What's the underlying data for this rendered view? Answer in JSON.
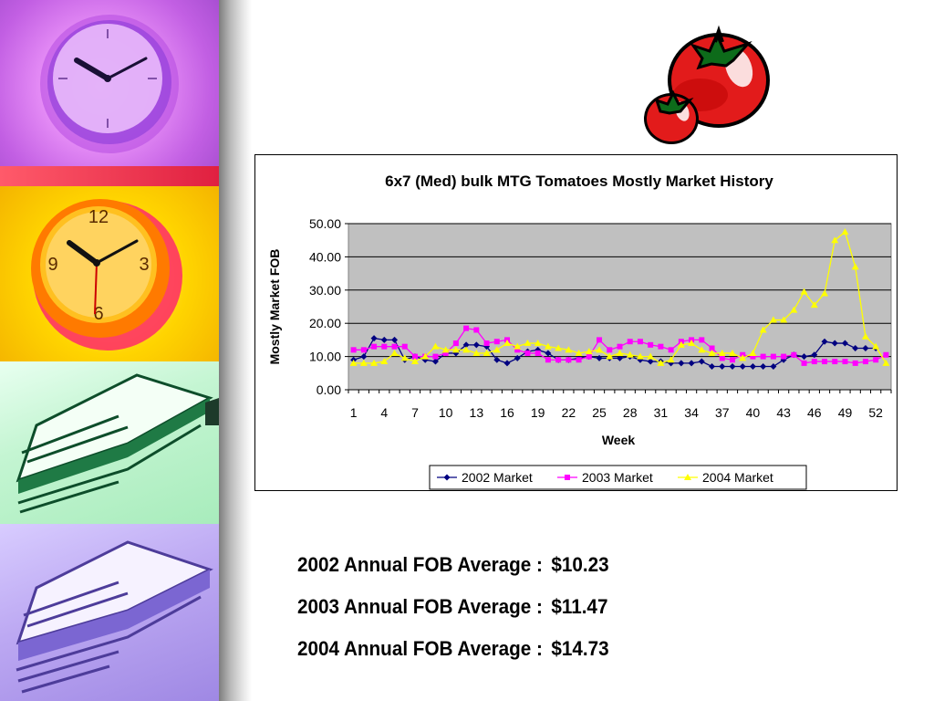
{
  "chart_data": {
    "type": "line",
    "title": "6x7 (Med) bulk MTG Tomatoes Mostly Market History",
    "xlabel": "Week",
    "ylabel": "Mostly Market FOB",
    "ylim": [
      0,
      50
    ],
    "yticks": [
      "0.00",
      "10.00",
      "20.00",
      "30.00",
      "40.00",
      "50.00"
    ],
    "x": [
      1,
      2,
      3,
      4,
      5,
      6,
      7,
      8,
      9,
      10,
      11,
      12,
      13,
      14,
      15,
      16,
      17,
      18,
      19,
      20,
      21,
      22,
      23,
      24,
      25,
      26,
      27,
      28,
      29,
      30,
      31,
      32,
      33,
      34,
      35,
      36,
      37,
      38,
      39,
      40,
      41,
      42,
      43,
      44,
      45,
      46,
      47,
      48,
      49,
      50,
      51,
      52,
      53
    ],
    "xtick_labels": [
      "1",
      "4",
      "7",
      "10",
      "13",
      "16",
      "19",
      "22",
      "25",
      "28",
      "31",
      "34",
      "37",
      "40",
      "43",
      "46",
      "49",
      "52"
    ],
    "grid": "horizontal",
    "plot_background": "#c0c0c0",
    "legend_position": "bottom",
    "series": [
      {
        "name": "2002 Market",
        "color": "#000080",
        "marker": "diamond",
        "values": [
          9,
          10,
          15.5,
          15,
          15,
          9,
          10,
          9,
          8.5,
          11,
          11,
          13.5,
          13.5,
          13,
          9,
          8,
          9.5,
          11.5,
          12,
          11,
          9,
          9,
          9.5,
          10,
          9.5,
          9.5,
          9.5,
          10,
          9,
          8.5,
          8.5,
          8,
          8,
          8,
          8.5,
          7,
          7,
          7,
          7,
          7,
          7,
          7,
          9,
          10.5,
          10,
          10.5,
          14.5,
          14,
          14,
          12.5,
          12.5,
          12.5,
          null
        ]
      },
      {
        "name": "2003 Market",
        "color": "#ff00ff",
        "marker": "square",
        "values": [
          12,
          12,
          13,
          13,
          13,
          13,
          10,
          10,
          10,
          11,
          14,
          18.5,
          18,
          14,
          14.5,
          15,
          12,
          11,
          11,
          9,
          9,
          9,
          9,
          10,
          15,
          12,
          13,
          14.5,
          14.5,
          13.5,
          13,
          12,
          14.5,
          15,
          15,
          12.5,
          9.5,
          9,
          10.5,
          10,
          10,
          10,
          10,
          10.5,
          8,
          8.5,
          8.5,
          8.5,
          8.5,
          8,
          8.5,
          9,
          10.5
        ]
      },
      {
        "name": "2004 Market",
        "color": "#ffff00",
        "marker": "triangle",
        "values": [
          8,
          8,
          8,
          8.5,
          11,
          9.5,
          8.5,
          10,
          13,
          12,
          12,
          12,
          11,
          11,
          12,
          14,
          13,
          14,
          14,
          13,
          12.5,
          12,
          11,
          11.5,
          12,
          10,
          11,
          10.5,
          10,
          10,
          8,
          9,
          13.5,
          14,
          12,
          11,
          11,
          11,
          9.5,
          11,
          18,
          21,
          21,
          24,
          29.5,
          25.5,
          29,
          45,
          47.5,
          37,
          16,
          13,
          8
        ]
      }
    ]
  },
  "averages": [
    {
      "label": "2002 Annual FOB Average :",
      "value": "$10.23"
    },
    {
      "label": "2003 Annual FOB Average :",
      "value": "$11.47"
    },
    {
      "label": "2004 Annual FOB Average :",
      "value": "$14.73"
    }
  ],
  "decor": {
    "photo_strip_colors": [
      "#c266e6",
      "#f9d21a",
      "#b4f2c6",
      "#bca8f2"
    ],
    "photo_strip_icons": [
      "clock-icon",
      "clock-icon",
      "stacked-books-icon",
      "stacked-books-icon"
    ],
    "clipart": "tomato-icon"
  }
}
